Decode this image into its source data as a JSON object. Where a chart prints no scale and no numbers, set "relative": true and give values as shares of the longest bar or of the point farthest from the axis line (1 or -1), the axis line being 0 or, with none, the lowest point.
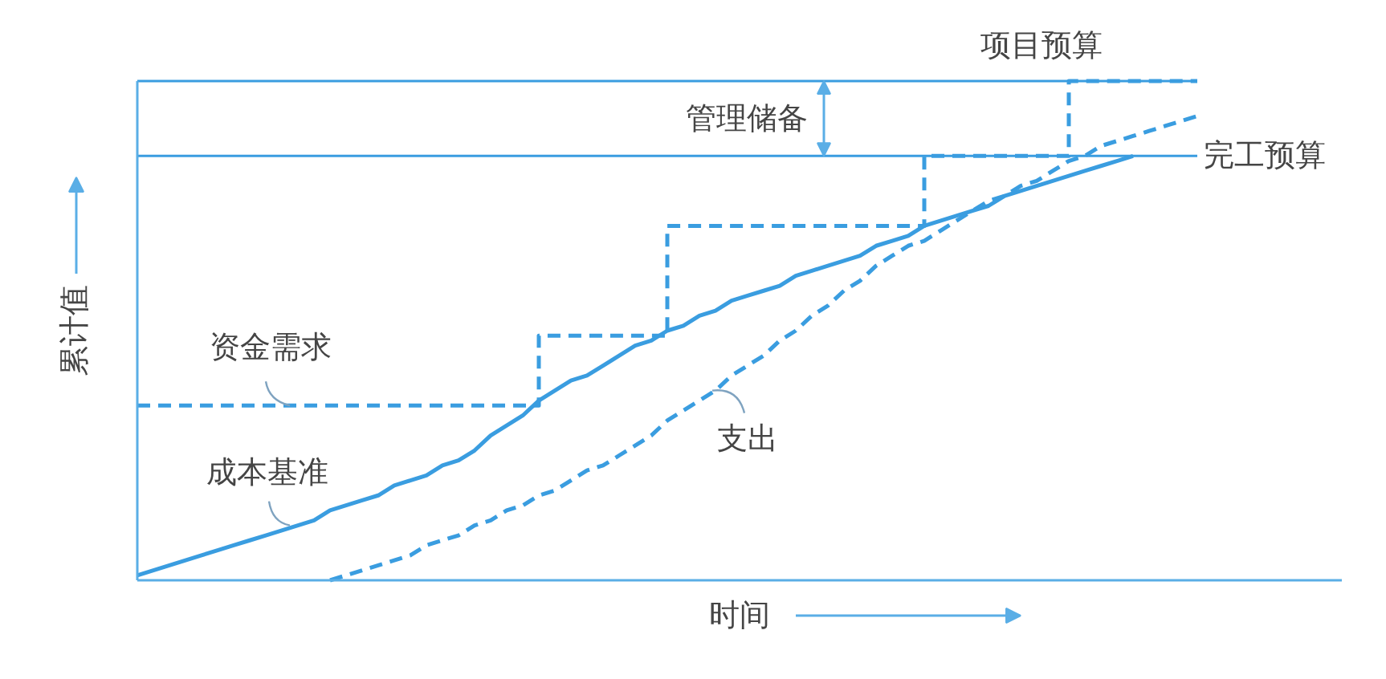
{
  "chart_data": {
    "type": "line",
    "relative": true,
    "xlabel": "时间",
    "ylabel": "累计值",
    "categories": [
      null,
      null,
      null,
      null,
      null,
      null,
      null,
      null,
      null,
      null,
      null,
      null,
      null,
      null,
      null,
      null,
      null,
      null,
      null,
      null,
      null,
      null,
      null,
      null,
      null,
      null,
      null,
      null,
      null,
      null,
      null,
      null,
      null,
      null,
      null,
      null,
      null,
      null,
      null,
      null,
      null,
      null,
      null,
      null,
      null,
      null,
      null,
      null,
      null,
      null,
      null,
      null,
      null,
      null,
      null,
      null,
      null,
      null,
      null,
      null,
      null,
      null,
      null,
      null,
      null,
      null,
      null,
      null,
      null,
      null,
      null,
      null,
      null,
      null,
      null,
      null
    ],
    "series": [
      {
        "name": "资金需求",
        "type": "step",
        "line_style": "dashed",
        "color": "#3a9de0",
        "values": [
          0.35,
          0.35,
          0.35,
          0.35,
          0.35,
          0.35,
          0.35,
          0.35,
          0.35,
          0.35,
          0.35,
          0.35,
          0.35,
          0.35,
          0.35,
          0.35,
          0.35,
          0.35,
          0.35,
          0.35,
          0.35,
          0.35,
          0.35,
          0.35,
          0.35,
          0.49,
          0.49,
          0.49,
          0.49,
          0.49,
          0.49,
          0.49,
          0.49,
          0.71,
          0.71,
          0.71,
          0.71,
          0.71,
          0.71,
          0.71,
          0.71,
          0.71,
          0.71,
          0.71,
          0.71,
          0.71,
          0.71,
          0.71,
          0.71,
          0.85,
          0.85,
          0.85,
          0.85,
          0.85,
          0.85,
          0.85,
          0.85,
          0.85,
          1,
          1,
          1,
          1,
          1,
          1,
          1,
          1,
          1,
          null,
          null,
          null,
          null,
          null,
          null,
          null,
          null,
          null
        ]
      },
      {
        "name": "成本基准",
        "line_style": "solid",
        "color": "#3a9de0",
        "values": [
          0.01,
          0.02,
          0.03,
          0.04,
          0.05,
          0.06,
          0.07,
          0.08,
          0.09,
          0.1,
          0.11,
          0.12,
          0.14,
          0.15,
          0.16,
          0.17,
          0.19,
          0.2,
          0.21,
          0.23,
          0.24,
          0.26,
          0.29,
          0.31,
          0.33,
          0.36,
          0.38,
          0.4,
          0.41,
          0.43,
          0.45,
          0.47,
          0.48,
          0.5,
          0.51,
          0.53,
          0.54,
          0.56,
          0.57,
          0.58,
          0.59,
          0.61,
          0.62,
          0.63,
          0.64,
          0.65,
          0.67,
          0.68,
          0.69,
          0.71,
          0.72,
          0.73,
          0.74,
          0.75,
          0.77,
          0.78,
          0.79,
          0.8,
          0.81,
          0.82,
          0.83,
          0.84,
          0.85,
          null,
          null,
          null,
          null,
          null,
          null,
          null,
          null,
          null,
          null,
          null,
          null,
          null
        ]
      },
      {
        "name": "支出",
        "line_style": "dashed",
        "color": "#3a9de0",
        "values": [
          null,
          null,
          null,
          null,
          null,
          null,
          null,
          null,
          null,
          null,
          null,
          null,
          0.0,
          0.01,
          0.02,
          0.03,
          0.04,
          0.05,
          0.07,
          0.08,
          0.09,
          0.11,
          0.12,
          0.14,
          0.15,
          0.17,
          0.18,
          0.2,
          0.22,
          0.23,
          0.25,
          0.27,
          0.29,
          0.32,
          0.34,
          0.36,
          0.38,
          0.41,
          0.43,
          0.45,
          0.48,
          0.5,
          0.53,
          0.55,
          0.58,
          0.6,
          0.63,
          0.65,
          0.67,
          0.68,
          0.7,
          0.72,
          0.74,
          0.76,
          0.77,
          0.79,
          0.8,
          0.82,
          0.84,
          0.85,
          0.87,
          0.88,
          0.89,
          0.9,
          0.91,
          0.92,
          0.93,
          null,
          null,
          null,
          null,
          null,
          null,
          null,
          null,
          null
        ]
      }
    ],
    "ref_lines": [
      {
        "axis": "y",
        "value": 1,
        "label": "项目预算",
        "color": "#3a9de0"
      },
      {
        "axis": "y",
        "value": 0.85,
        "label": "完工预算",
        "color": "#3a9de0"
      }
    ],
    "annotations": [
      "管理储备"
    ]
  }
}
